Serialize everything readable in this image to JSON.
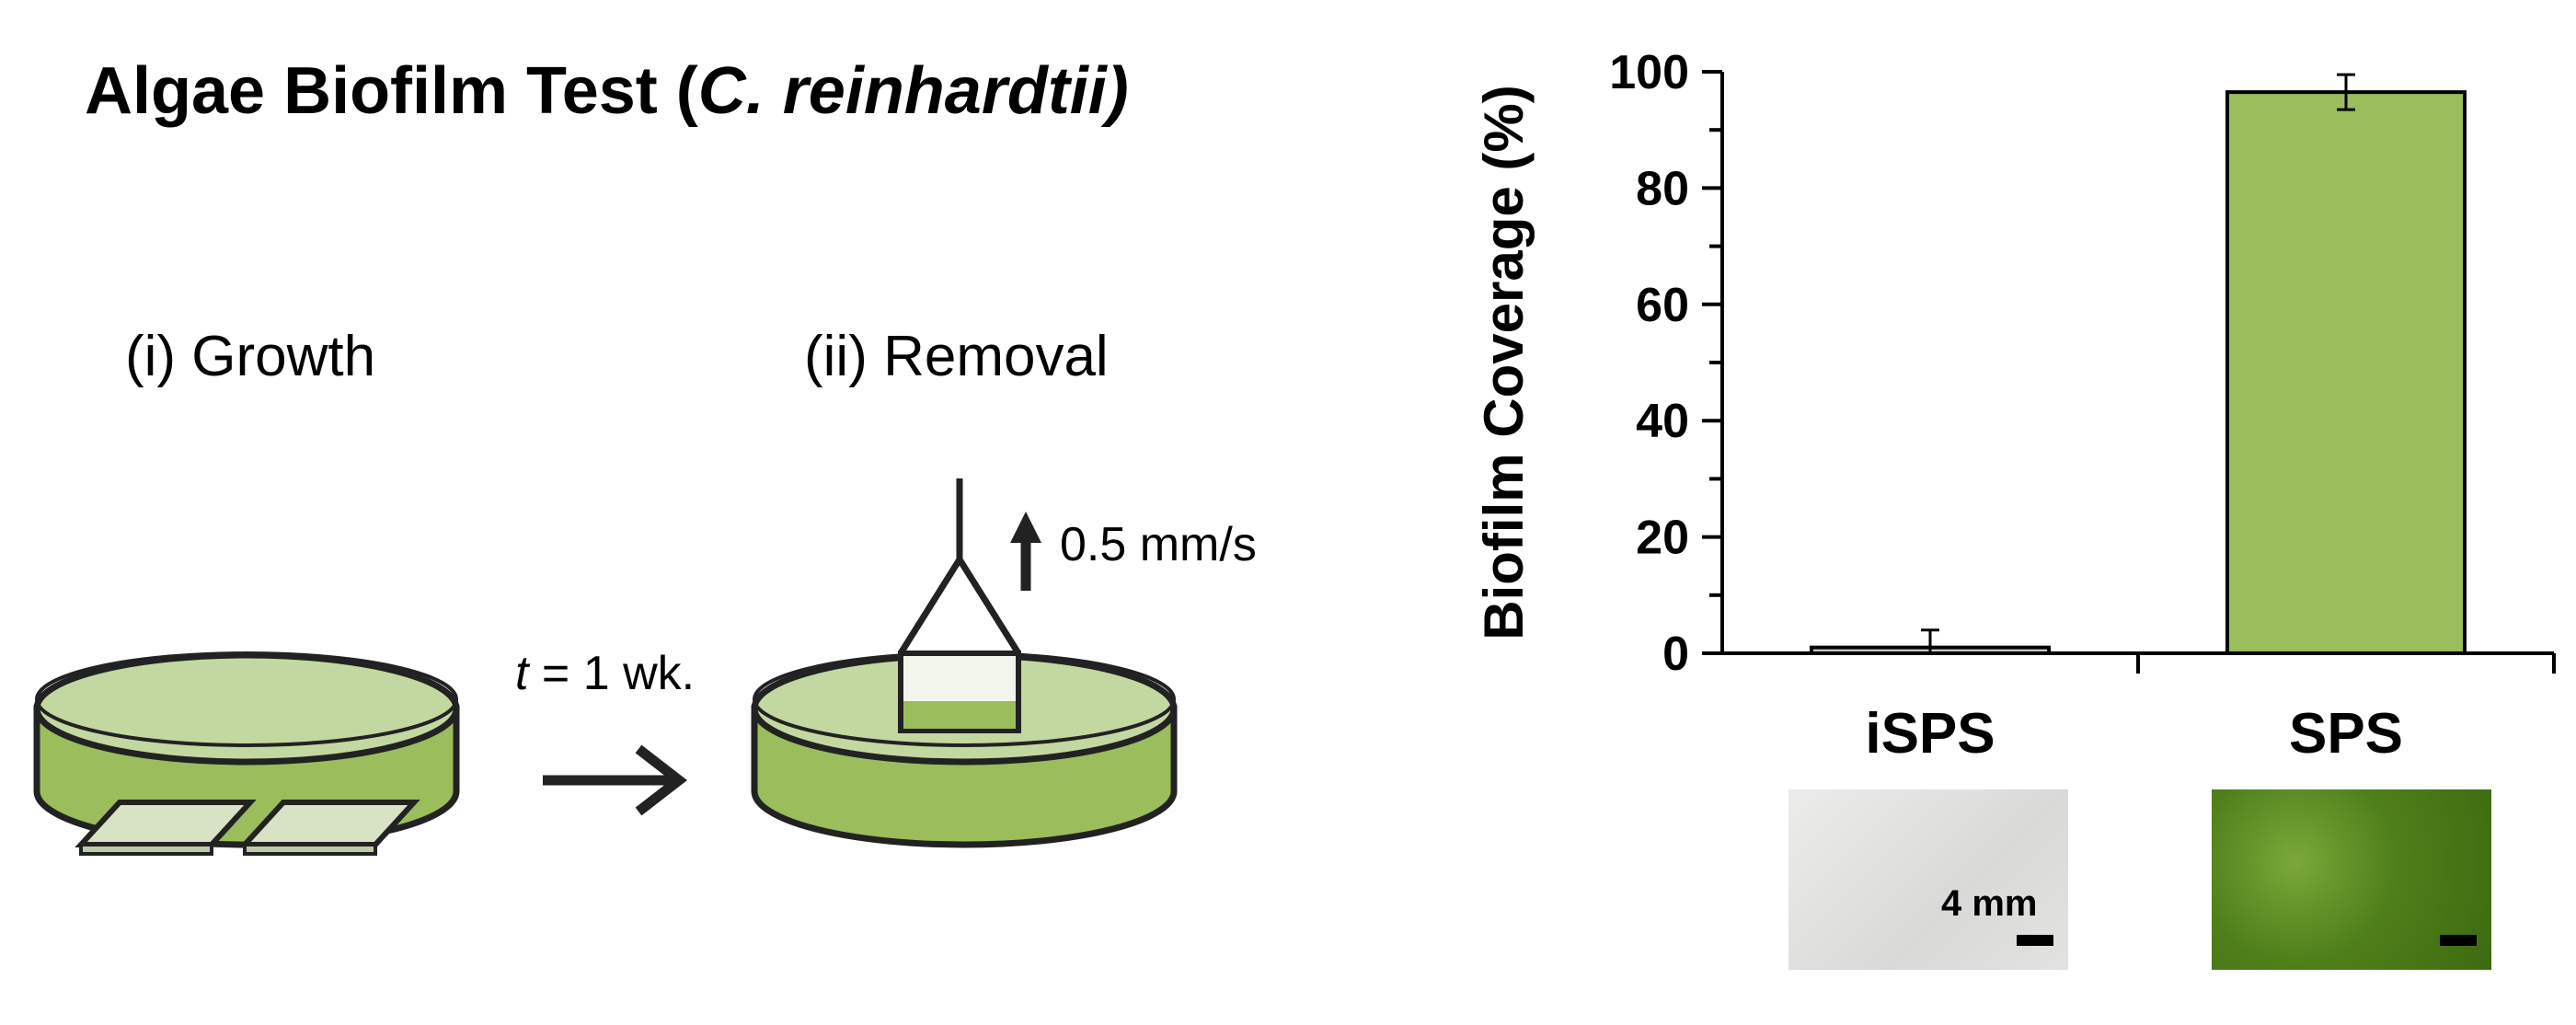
{
  "title": {
    "prefix": "Algae Biofilm Test (",
    "species": "C. reinhardtii)"
  },
  "steps": {
    "growth": "(i) Growth",
    "removal": "(ii) Removal"
  },
  "time_note": {
    "symbol": "t",
    "rest": " = 1 wk."
  },
  "speed_note": "0.5 mm/s",
  "scale_label": "4 mm",
  "colors": {
    "algae_green": "#9bbd5b",
    "algae_light": "#c3d8a0",
    "bar_ispss": "#c8c8c8",
    "outline": "#222222"
  },
  "chart_data": {
    "type": "bar",
    "categories": [
      "iSPS",
      "SPS"
    ],
    "values": [
      1,
      96.5
    ],
    "errors": [
      3,
      3
    ],
    "title": "",
    "xlabel": "",
    "ylabel": "Biofilm Coverage (%)",
    "ylim": [
      0,
      100
    ],
    "yticks": [
      0,
      20,
      40,
      60,
      80,
      100
    ],
    "grid": false,
    "legend": "none"
  }
}
